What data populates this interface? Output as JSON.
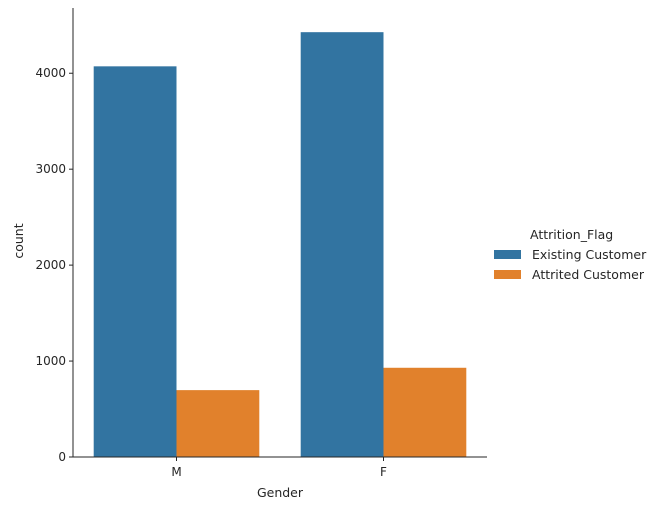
{
  "chart_data": {
    "type": "bar",
    "title": "",
    "xlabel": "Gender",
    "ylabel": "count",
    "categories": [
      "M",
      "F"
    ],
    "series": [
      {
        "name": "Existing Customer",
        "values": [
          4072,
          4428
        ],
        "color": "#3274a1"
      },
      {
        "name": "Attrited Customer",
        "values": [
          697,
          930
        ],
        "color": "#e1812c"
      }
    ],
    "ylim": [
      0,
      4680
    ],
    "yticks": [
      0,
      1000,
      2000,
      3000,
      4000
    ],
    "grid": false,
    "legend": {
      "title": "Attrition_Flag",
      "placement": "right"
    }
  }
}
